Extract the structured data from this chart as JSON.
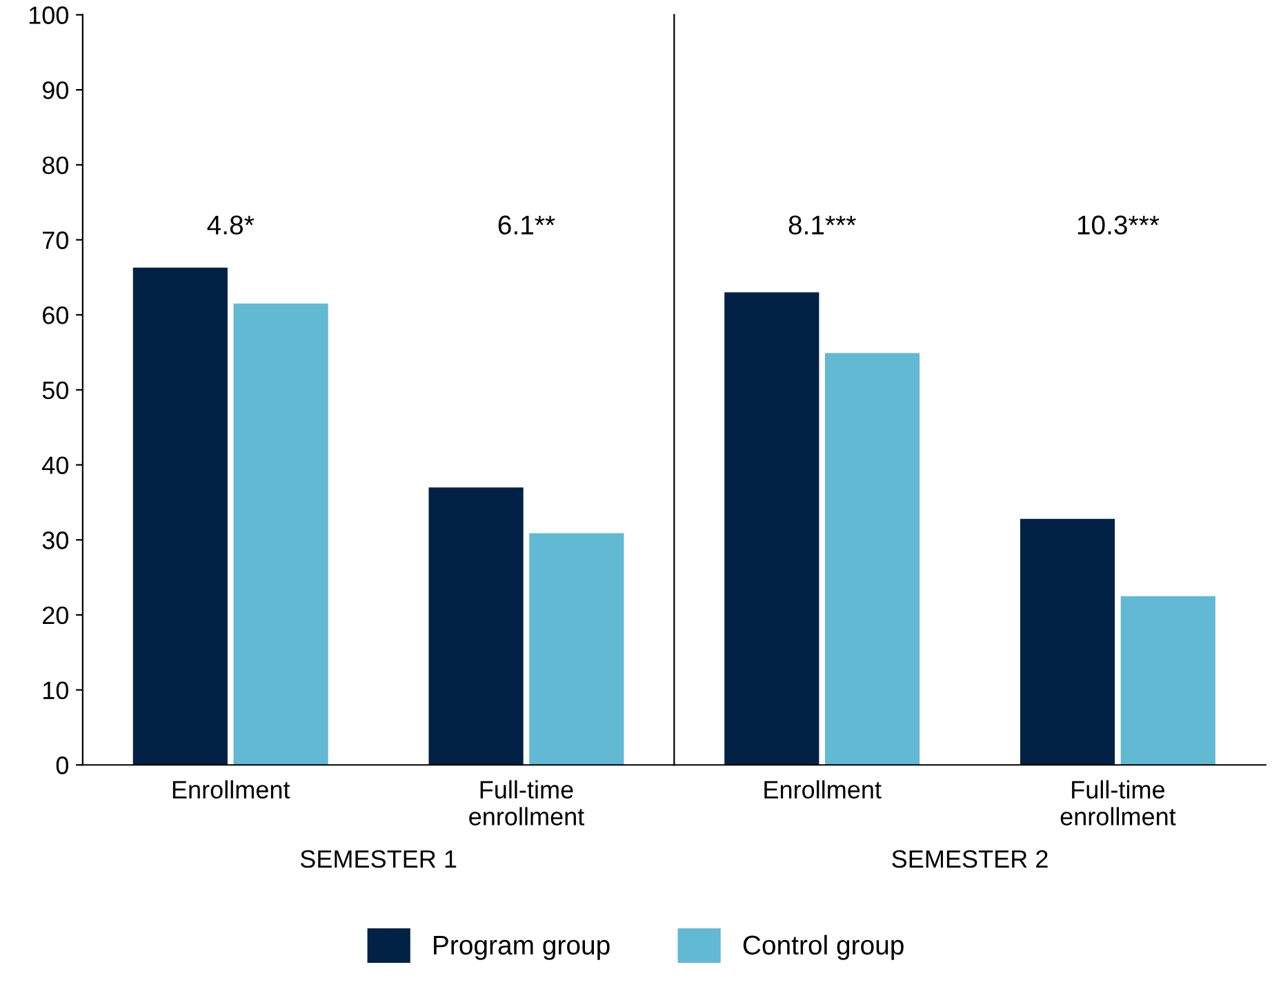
{
  "chart_data": [
    {
      "type": "bar",
      "xlabel": "SEMESTER 1",
      "categories": [
        "Enrollment",
        "Full-time\nenrollment"
      ],
      "series": [
        {
          "name": "Program group",
          "color": "#012245",
          "values": [
            66.3,
            37.0
          ]
        },
        {
          "name": "Control group",
          "color": "#62b9d3",
          "values": [
            61.5,
            30.9
          ]
        }
      ],
      "annotations": [
        "4.8*",
        "6.1**"
      ],
      "ylim": [
        0,
        100
      ],
      "yticks": [
        0,
        10,
        20,
        30,
        40,
        50,
        60,
        70,
        80,
        90,
        100
      ],
      "grid": false,
      "legend": "bottom"
    },
    {
      "type": "bar",
      "xlabel": "SEMESTER 2",
      "categories": [
        "Enrollment",
        "Full-time\nenrollment"
      ],
      "series": [
        {
          "color": "#012245",
          "values": [
            63.0,
            32.8
          ]
        },
        {
          "color": "#62b9d3",
          "values": [
            54.9,
            22.5
          ]
        }
      ],
      "annotations": [
        "8.1***",
        "10.3***"
      ],
      "ylim": [
        0,
        100
      ],
      "tick_labels": "x",
      "grid": false
    }
  ]
}
